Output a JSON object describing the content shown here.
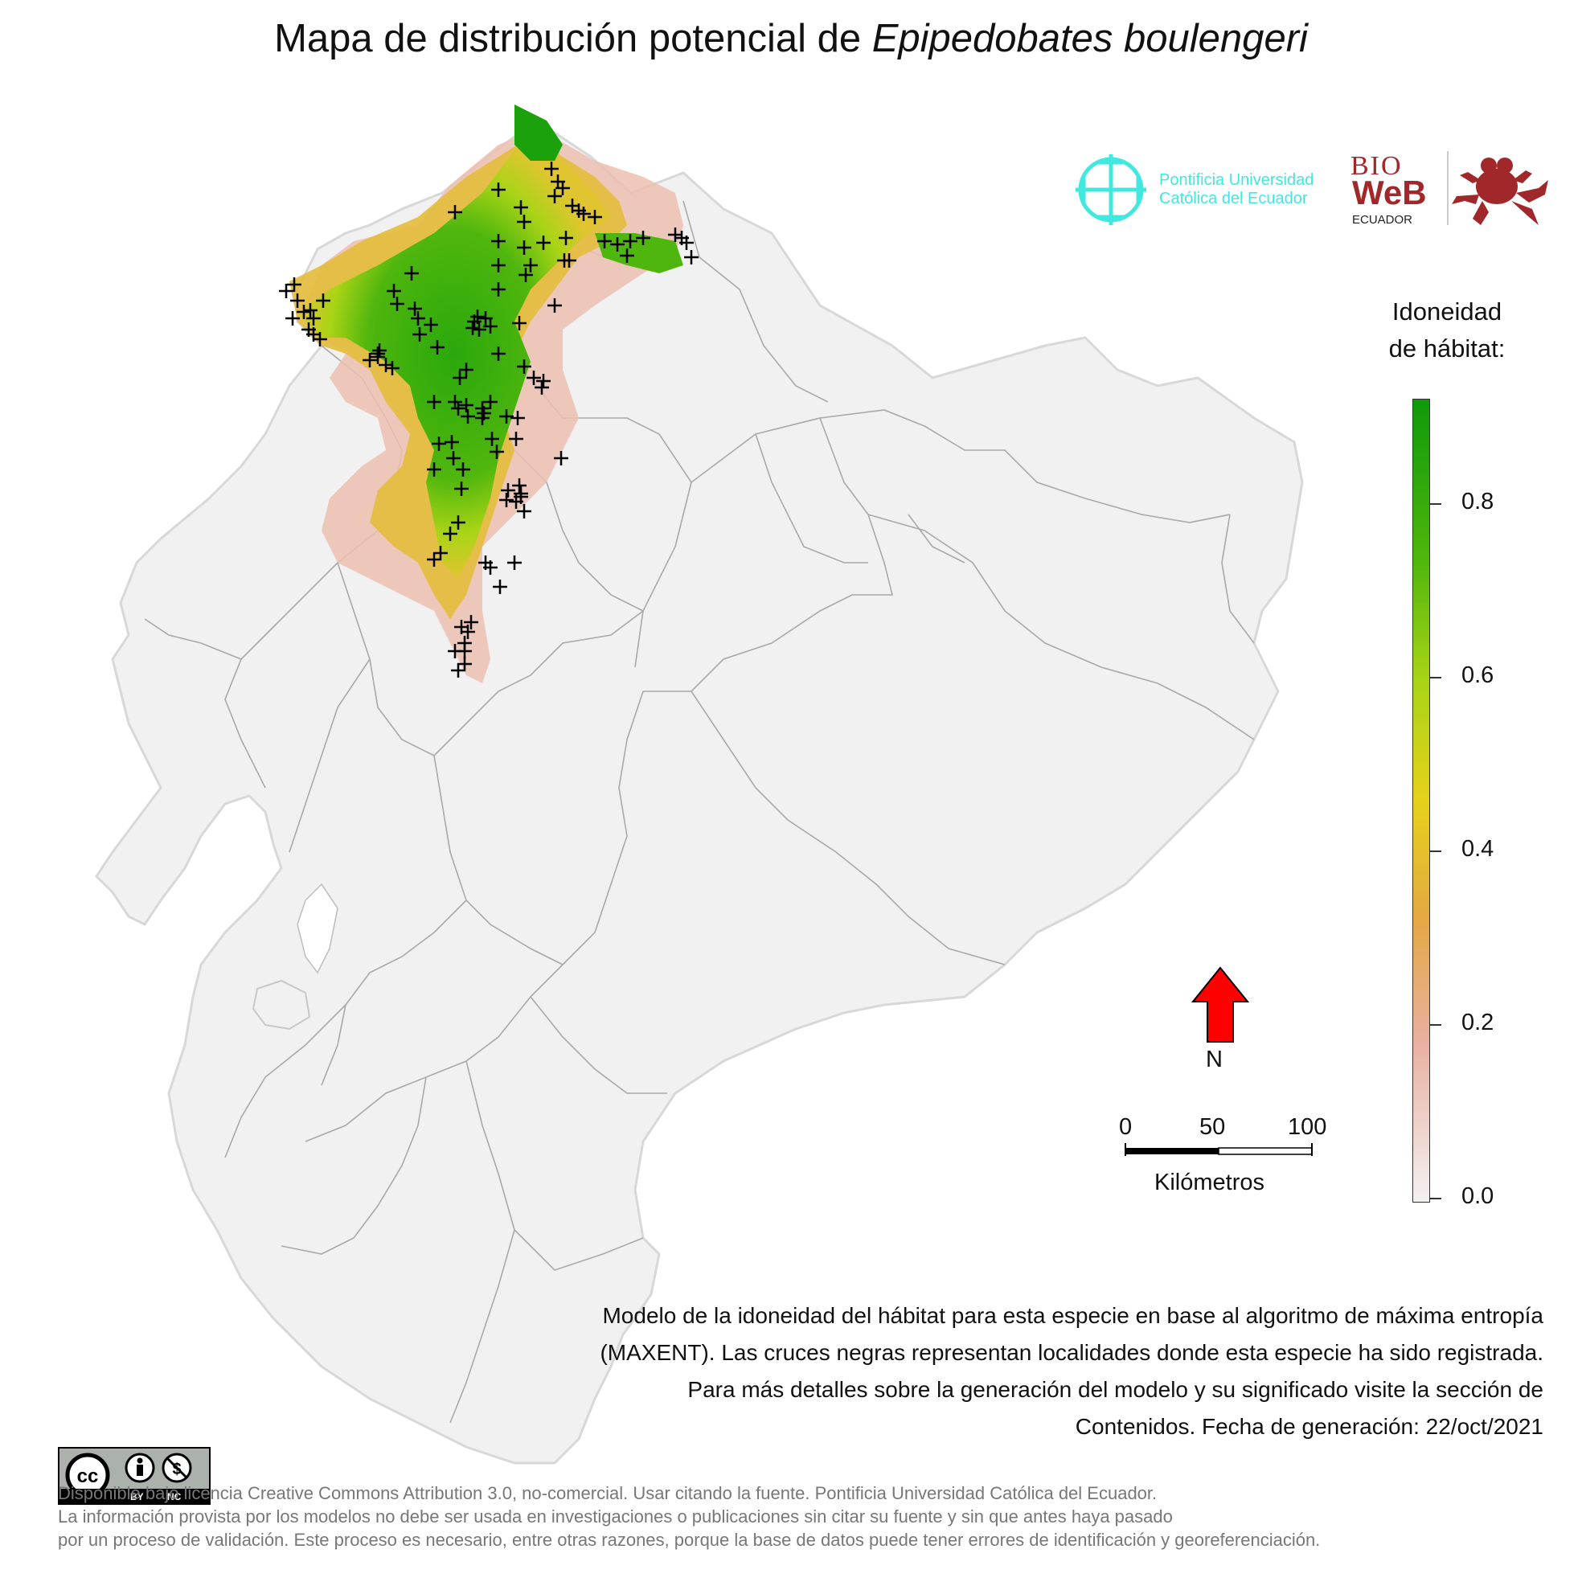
{
  "title": {
    "prefix": "Mapa de distribución potencial de ",
    "species": "Epipedobates boulengeri"
  },
  "logos": {
    "puce": "Pontificia Universidad\nCatólica del Ecuador",
    "bioweb": {
      "line1": "BIO",
      "line2": "WeB",
      "line3": "ECUADOR"
    }
  },
  "legend": {
    "title_line1": "Idoneidad",
    "title_line2": "de hábitat:",
    "ticks": [
      "0.8",
      "0.6",
      "0.4",
      "0.2",
      "0.0"
    ],
    "tick_values": [
      0.8,
      0.6,
      0.4,
      0.2,
      0.0
    ],
    "range": [
      0,
      0.92
    ],
    "colors": [
      "#f4f1f1",
      "#e9b0a0",
      "#e4a844",
      "#e6d11a",
      "#a9d416",
      "#4fb60d",
      "#0f9a0a"
    ]
  },
  "north_arrow": {
    "label": "N",
    "color": "#ff0000"
  },
  "scale_bar": {
    "labels": [
      "0",
      "50",
      "100"
    ],
    "unit": "Kilómetros"
  },
  "description": "Modelo de la idoneidad del hábitat para esta especie en base al algoritmo de máxima entropía (MAXENT). Las cruces negras representan localidades donde esta especie ha sido registrada. Para más detalles sobre la generación del modelo y su significado visite la sección de Contenidos. Fecha de generación: 22/oct/2021",
  "license": {
    "badge": {
      "by": "BY",
      "nc": "NC"
    },
    "text": "Disponible bajo licencia Creative Commons Attribution 3.0, no-comercial. Usar citando la fuente. Pontificia Universidad Católica del Ecuador.\nLa información provista por los modelos no debe ser usada en investigaciones o publicaciones sin citar su fuente y sin que antes haya pasado\npor un proceso de validación. Este proceso es necesario, entre otras razones, porque la base de datos puede tener errores de identificación y georeferenciación."
  },
  "map": {
    "base_color": "#f1f1f1",
    "border_color": "#9e9e9e",
    "occurrence_marker": "+",
    "occurrence_count": 98
  }
}
